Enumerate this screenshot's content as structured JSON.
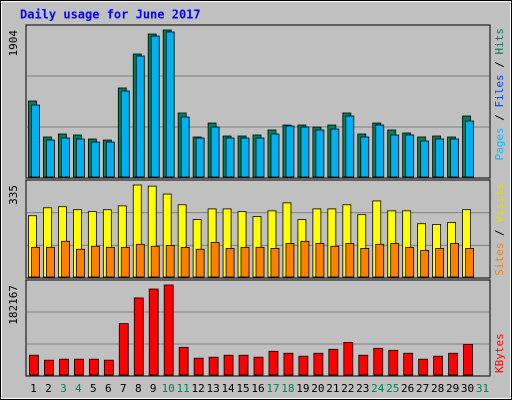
{
  "title": "Daily usage for June 2017",
  "legend_separator": " / ",
  "chart_data": [
    {
      "type": "bar",
      "ylim": [
        0,
        1904
      ],
      "yticks": [
        1904
      ],
      "legend_position": "top",
      "legend": [
        {
          "name": "Pages",
          "color": "#00c0ff"
        },
        {
          "name": "Files",
          "color": "#0040ff"
        },
        {
          "name": "Hits",
          "color": "#00805c"
        }
      ],
      "series": [
        {
          "name": "Hits",
          "color": "#00805c",
          "values": [
            984,
            518,
            557,
            544,
            492,
            479,
            1153,
            1593,
            1852,
            1904,
            829,
            518,
            699,
            531,
            531,
            544,
            609,
            673,
            673,
            647,
            673,
            829,
            557,
            699,
            609,
            570,
            518,
            531,
            518,
            790,
            null
          ]
        },
        {
          "name": "Pages",
          "color": "#00b0f0",
          "values": [
            932,
            479,
            505,
            492,
            453,
            453,
            1114,
            1567,
            1826,
            1878,
            777,
            505,
            647,
            505,
            505,
            505,
            557,
            660,
            647,
            609,
            621,
            790,
            518,
            673,
            544,
            544,
            466,
            492,
            492,
            725,
            null
          ]
        }
      ]
    },
    {
      "type": "bar",
      "ylim": [
        0,
        335
      ],
      "yticks": [
        335
      ],
      "legend_position": "top",
      "legend": [
        {
          "name": "Sites",
          "color": "#ff8000"
        },
        {
          "name": "Visits",
          "color": "#e0e000"
        }
      ],
      "series": [
        {
          "name": "Visits",
          "color": "#ffff00",
          "values": [
            223,
            252,
            256,
            245,
            238,
            245,
            259,
            335,
            331,
            302,
            263,
            209,
            248,
            248,
            238,
            220,
            241,
            270,
            209,
            248,
            248,
            263,
            227,
            277,
            241,
            241,
            194,
            191,
            198,
            245,
            null
          ]
        },
        {
          "name": "Sites",
          "color": "#ff8000",
          "values": [
            108,
            108,
            130,
            101,
            112,
            108,
            108,
            119,
            112,
            115,
            108,
            101,
            126,
            104,
            108,
            108,
            104,
            122,
            130,
            122,
            112,
            122,
            104,
            119,
            122,
            108,
            97,
            104,
            122,
            104,
            null
          ]
        }
      ]
    },
    {
      "type": "bar",
      "ylim": [
        0,
        182167
      ],
      "yticks": [
        182167
      ],
      "legend_position": "bottom",
      "legend": [
        {
          "name": "KBytes",
          "color": "#ff0000"
        }
      ],
      "categories": [
        1,
        2,
        3,
        4,
        5,
        6,
        7,
        8,
        9,
        10,
        11,
        12,
        13,
        14,
        15,
        16,
        17,
        18,
        19,
        20,
        21,
        22,
        23,
        24,
        25,
        26,
        27,
        28,
        29,
        30,
        31
      ],
      "category_colors": [
        "#000000",
        "#000000",
        "#00805c",
        "#00805c",
        "#000000",
        "#000000",
        "#000000",
        "#000000",
        "#000000",
        "#00805c",
        "#00805c",
        "#000000",
        "#000000",
        "#000000",
        "#000000",
        "#000000",
        "#00805c",
        "#00805c",
        "#000000",
        "#000000",
        "#000000",
        "#000000",
        "#000000",
        "#00805c",
        "#00805c",
        "#000000",
        "#000000",
        "#000000",
        "#000000",
        "#000000",
        "#00805c"
      ],
      "series": [
        {
          "name": "KBytes",
          "color": "#ff0000",
          "values": [
            40000,
            30000,
            32000,
            32000,
            32000,
            30000,
            104000,
            156000,
            174000,
            182167,
            56000,
            34000,
            36000,
            40000,
            40000,
            36000,
            48000,
            44000,
            38000,
            44000,
            52000,
            66000,
            40000,
            54000,
            50000,
            44000,
            32000,
            38000,
            44000,
            62000,
            null
          ]
        }
      ]
    }
  ]
}
